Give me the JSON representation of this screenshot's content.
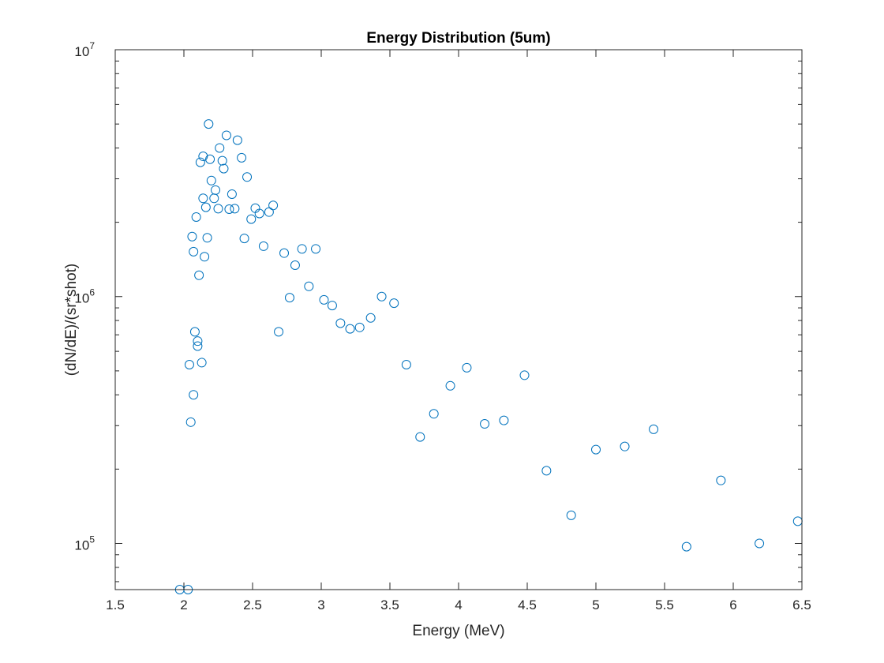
{
  "chart_data": {
    "type": "scatter",
    "title": "Energy Distribution (5um)",
    "xlabel": "Energy (MeV)",
    "ylabel": "(dN/dE)/(sr*shot)",
    "xlim": [
      1.5,
      6.5
    ],
    "ylim": [
      65000,
      10000000
    ],
    "yscale": "log",
    "grid": false,
    "marker": "open-circle",
    "x_ticks": [
      "1.5",
      "2",
      "2.5",
      "3",
      "3.5",
      "4",
      "4.5",
      "5",
      "5.5",
      "6",
      "6.5"
    ],
    "y_ticks": [
      {
        "base": "10",
        "exp": "5"
      },
      {
        "base": "10",
        "exp": "6"
      },
      {
        "base": "10",
        "exp": "7"
      }
    ],
    "series": [
      {
        "color": "#0072BD",
        "points": [
          [
            1.97,
            65000
          ],
          [
            2.03,
            65000
          ],
          [
            2.04,
            530000
          ],
          [
            2.05,
            310000
          ],
          [
            2.06,
            1750000
          ],
          [
            2.07,
            400000
          ],
          [
            2.07,
            1520000
          ],
          [
            2.08,
            720000
          ],
          [
            2.09,
            2100000
          ],
          [
            2.1,
            660000
          ],
          [
            2.1,
            630000
          ],
          [
            2.11,
            1220000
          ],
          [
            2.12,
            3500000
          ],
          [
            2.13,
            540000
          ],
          [
            2.14,
            3700000
          ],
          [
            2.14,
            2500000
          ],
          [
            2.15,
            1450000
          ],
          [
            2.16,
            2300000
          ],
          [
            2.17,
            1730000
          ],
          [
            2.18,
            5000000
          ],
          [
            2.19,
            3600000
          ],
          [
            2.2,
            2950000
          ],
          [
            2.22,
            2500000
          ],
          [
            2.23,
            2700000
          ],
          [
            2.25,
            2270000
          ],
          [
            2.26,
            4000000
          ],
          [
            2.28,
            3550000
          ],
          [
            2.29,
            3300000
          ],
          [
            2.31,
            4500000
          ],
          [
            2.33,
            2260000
          ],
          [
            2.35,
            2600000
          ],
          [
            2.37,
            2270000
          ],
          [
            2.39,
            4300000
          ],
          [
            2.42,
            3650000
          ],
          [
            2.44,
            1720000
          ],
          [
            2.46,
            3050000
          ],
          [
            2.49,
            2060000
          ],
          [
            2.52,
            2280000
          ],
          [
            2.55,
            2170000
          ],
          [
            2.58,
            1600000
          ],
          [
            2.62,
            2200000
          ],
          [
            2.65,
            2340000
          ],
          [
            2.69,
            720000
          ],
          [
            2.73,
            1500000
          ],
          [
            2.77,
            990000
          ],
          [
            2.81,
            1340000
          ],
          [
            2.86,
            1560000
          ],
          [
            2.91,
            1100000
          ],
          [
            2.96,
            1560000
          ],
          [
            3.02,
            970000
          ],
          [
            3.08,
            920000
          ],
          [
            3.14,
            780000
          ],
          [
            3.21,
            740000
          ],
          [
            3.28,
            750000
          ],
          [
            3.36,
            820000
          ],
          [
            3.44,
            1000000
          ],
          [
            3.53,
            940000
          ],
          [
            3.62,
            530000
          ],
          [
            3.72,
            270000
          ],
          [
            3.82,
            335000
          ],
          [
            3.94,
            435000
          ],
          [
            4.06,
            515000
          ],
          [
            4.19,
            305000
          ],
          [
            4.33,
            315000
          ],
          [
            4.48,
            480000
          ],
          [
            4.64,
            197000
          ],
          [
            4.82,
            130000
          ],
          [
            5.0,
            240000
          ],
          [
            5.21,
            247000
          ],
          [
            5.42,
            290000
          ],
          [
            5.66,
            97000
          ],
          [
            5.91,
            180000
          ],
          [
            6.19,
            100000
          ],
          [
            6.47,
            123000
          ]
        ]
      }
    ]
  }
}
